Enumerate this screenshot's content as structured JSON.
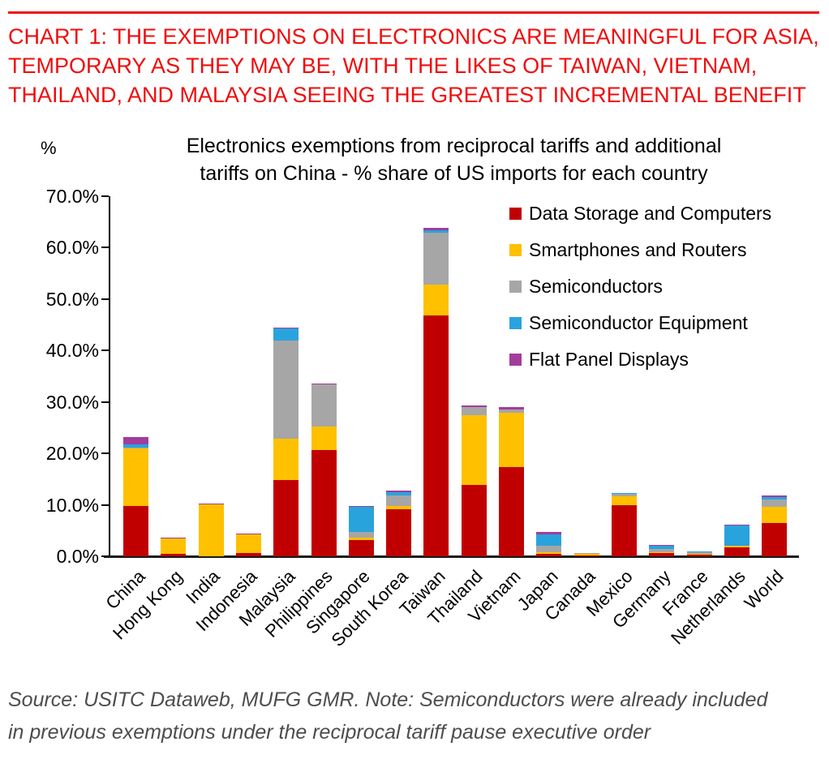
{
  "header": {
    "rule_color": "#f10b0b",
    "lines": [
      "CHART 1: THE EXEMPTIONS ON ELECTRONICS ARE MEANINGFUL FOR ASIA,",
      "TEMPORARY AS THEY MAY BE, WITH THE LIKES OF TAIWAN, VIETNAM,",
      "THAILAND, AND MALAYSIA SEEING THE GREATEST INCREMENTAL BENEFIT"
    ]
  },
  "chart": {
    "title_lines": [
      "Electronics exemptions from reciprocal tariffs and additional",
      "tariffs on China - % share of US imports for each country"
    ],
    "unit_label": "%"
  },
  "chart_data": {
    "type": "bar",
    "stacked": true,
    "title": "Electronics exemptions from reciprocal tariffs and additional tariffs on China - % share of US imports for each country",
    "xlabel": "",
    "ylabel": "%",
    "ylim": [
      0,
      70
    ],
    "ystep": 10,
    "ytick_suffix": "%",
    "grid": false,
    "legend_position": "top-right",
    "categories": [
      "China",
      "Hong Kong",
      "India",
      "Indonesia",
      "Malaysia",
      "Philippines",
      "Singapore",
      "South Korea",
      "Taiwan",
      "Thailand",
      "Vietnam",
      "Japan",
      "Canada",
      "Mexico",
      "Germany",
      "France",
      "Netherlands",
      "World"
    ],
    "series": [
      {
        "name": "Data Storage and Computers",
        "color": "#C00000",
        "values": [
          9.7,
          0.4,
          0,
          0.7,
          14.8,
          20.6,
          3.1,
          9.2,
          46.8,
          13.9,
          17.4,
          0.5,
          0.1,
          9.9,
          0.6,
          0.3,
          1.8,
          6.4
        ]
      },
      {
        "name": "Smartphones and Routers",
        "color": "#FFC000",
        "values": [
          11.2,
          3.0,
          10.1,
          3.5,
          8.0,
          4.7,
          0.6,
          0.5,
          6.0,
          13.6,
          10.5,
          0.3,
          0.3,
          1.8,
          0.2,
          0.1,
          0.3,
          3.2
        ]
      },
      {
        "name": "Semiconductors",
        "color": "#A6A6A6",
        "values": [
          0.2,
          0,
          0,
          0,
          19.2,
          8.1,
          1.0,
          2.1,
          10.1,
          1.5,
          0.7,
          1.2,
          0.2,
          0.4,
          0.6,
          0.4,
          0,
          1.4
        ]
      },
      {
        "name": "Semiconductor Equipment",
        "color": "#29A3DC",
        "values": [
          0.6,
          0,
          0,
          0,
          2.3,
          0,
          4.9,
          0.6,
          0.5,
          0,
          0,
          2.3,
          0,
          0.15,
          0.7,
          0.1,
          3.9,
          0.5
        ]
      },
      {
        "name": "Flat Panel Displays",
        "color": "#A33C9C",
        "values": [
          1.4,
          0.2,
          0.2,
          0.2,
          0.2,
          0.2,
          0.1,
          0.3,
          0.4,
          0.4,
          0.4,
          0.5,
          0,
          0.1,
          0.1,
          0.1,
          0.1,
          0.3
        ]
      }
    ]
  },
  "footer": {
    "lines": [
      "Source: USITC Dataweb, MUFG GMR.  Note: Semiconductors were already included",
      "in previous exemptions under the reciprocal tariff pause executive order"
    ]
  }
}
